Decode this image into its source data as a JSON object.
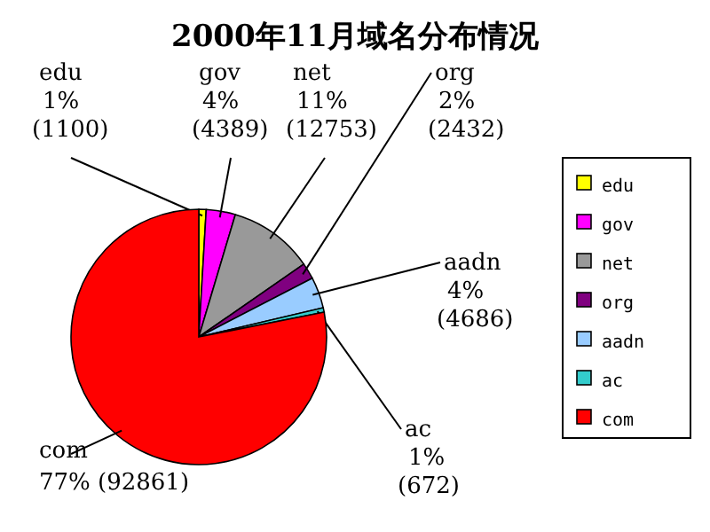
{
  "chart_data": {
    "type": "pie",
    "title": "2000年11月域名分布情况",
    "categories": [
      "edu",
      "gov",
      "net",
      "org",
      "aadn",
      "ac",
      "com"
    ],
    "values": [
      1100,
      4389,
      12753,
      2432,
      4686,
      672,
      92861
    ],
    "value_labels": [
      "1% (1100)",
      "4% (4389)",
      "11% (12753)",
      "2% (2432)",
      "4% (4686)",
      "1% (672)",
      "77% (92861)"
    ],
    "colors": [
      "#ffff00",
      "#ff00ff",
      "#999999",
      "#800080",
      "#99ccff",
      "#33cccc",
      "#ff0000"
    ],
    "legend": "right"
  }
}
